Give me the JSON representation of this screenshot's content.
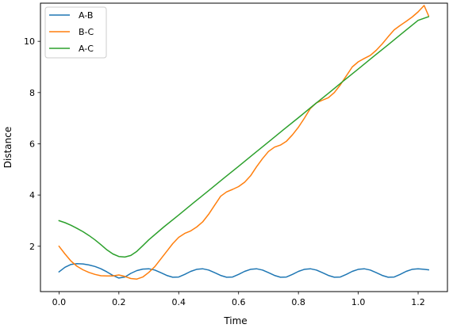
{
  "chart_data": {
    "type": "line",
    "title": "",
    "xlabel": "Time",
    "ylabel": "Distance",
    "xlim": [
      -0.062,
      1.298
    ],
    "ylim": [
      0.23,
      11.49
    ],
    "xticks": [
      0.0,
      0.2,
      0.4,
      0.6,
      0.8,
      1.0,
      1.2
    ],
    "xtick_labels": [
      "0.0",
      "0.2",
      "0.4",
      "0.6",
      "0.8",
      "1.0",
      "1.2"
    ],
    "yticks": [
      2,
      4,
      6,
      8,
      10
    ],
    "ytick_labels": [
      "2",
      "4",
      "6",
      "8",
      "10"
    ],
    "grid": false,
    "legend_position": "top-left",
    "series": [
      {
        "name": "A-B",
        "color": "#1f77b4",
        "x": [
          0.0,
          0.02,
          0.04,
          0.06,
          0.08,
          0.1,
          0.12,
          0.14,
          0.16,
          0.18,
          0.2,
          0.22,
          0.24,
          0.26,
          0.28,
          0.3,
          0.32,
          0.34,
          0.36,
          0.38,
          0.4,
          0.42,
          0.44,
          0.46,
          0.48,
          0.5,
          0.52,
          0.54,
          0.56,
          0.58,
          0.6,
          0.62,
          0.64,
          0.66,
          0.68,
          0.7,
          0.72,
          0.74,
          0.76,
          0.78,
          0.8,
          0.82,
          0.84,
          0.86,
          0.88,
          0.9,
          0.92,
          0.94,
          0.96,
          0.98,
          1.0,
          1.02,
          1.04,
          1.06,
          1.08,
          1.1,
          1.12,
          1.14,
          1.16,
          1.18,
          1.2,
          1.22,
          1.235
        ],
        "values": [
          1.0,
          1.18,
          1.29,
          1.32,
          1.31,
          1.27,
          1.21,
          1.12,
          1.0,
          0.86,
          0.76,
          0.8,
          0.94,
          1.05,
          1.11,
          1.12,
          1.07,
          0.97,
          0.86,
          0.79,
          0.8,
          0.9,
          1.02,
          1.1,
          1.12,
          1.07,
          0.97,
          0.86,
          0.79,
          0.8,
          0.9,
          1.02,
          1.1,
          1.12,
          1.07,
          0.97,
          0.86,
          0.79,
          0.8,
          0.9,
          1.02,
          1.1,
          1.12,
          1.07,
          0.97,
          0.86,
          0.79,
          0.8,
          0.9,
          1.02,
          1.1,
          1.12,
          1.07,
          0.97,
          0.86,
          0.79,
          0.8,
          0.9,
          1.02,
          1.1,
          1.12,
          1.1,
          1.08
        ]
      },
      {
        "name": "B-C",
        "color": "#ff7f0e",
        "x": [
          0.0,
          0.02,
          0.04,
          0.06,
          0.08,
          0.1,
          0.12,
          0.14,
          0.16,
          0.18,
          0.2,
          0.22,
          0.24,
          0.26,
          0.28,
          0.3,
          0.32,
          0.34,
          0.36,
          0.38,
          0.4,
          0.42,
          0.44,
          0.46,
          0.48,
          0.5,
          0.52,
          0.54,
          0.56,
          0.58,
          0.6,
          0.62,
          0.64,
          0.66,
          0.68,
          0.7,
          0.72,
          0.74,
          0.76,
          0.78,
          0.8,
          0.82,
          0.84,
          0.86,
          0.88,
          0.9,
          0.92,
          0.94,
          0.96,
          0.98,
          1.0,
          1.02,
          1.04,
          1.06,
          1.08,
          1.1,
          1.12,
          1.14,
          1.16,
          1.18,
          1.2,
          1.22,
          1.235
        ],
        "values": [
          2.0,
          1.7,
          1.42,
          1.22,
          1.08,
          0.98,
          0.9,
          0.85,
          0.84,
          0.84,
          0.88,
          0.82,
          0.74,
          0.72,
          0.8,
          0.98,
          1.2,
          1.5,
          1.8,
          2.1,
          2.35,
          2.5,
          2.6,
          2.75,
          2.95,
          3.25,
          3.6,
          3.95,
          4.12,
          4.22,
          4.33,
          4.5,
          4.75,
          5.1,
          5.42,
          5.7,
          5.87,
          5.95,
          6.1,
          6.35,
          6.65,
          7.0,
          7.38,
          7.6,
          7.7,
          7.8,
          8.0,
          8.3,
          8.65,
          9.0,
          9.2,
          9.33,
          9.45,
          9.65,
          9.9,
          10.18,
          10.45,
          10.62,
          10.78,
          10.95,
          11.15,
          11.4,
          11.0
        ],
        "note_exclude": true
      },
      {
        "name": "A-C",
        "color": "#2ca02c",
        "x": [
          0.0,
          0.02,
          0.04,
          0.06,
          0.08,
          0.1,
          0.12,
          0.14,
          0.16,
          0.18,
          0.2,
          0.22,
          0.24,
          0.26,
          0.28,
          0.3,
          0.35,
          0.4,
          0.45,
          0.5,
          0.55,
          0.6,
          0.65,
          0.7,
          0.75,
          0.8,
          0.85,
          0.9,
          0.95,
          1.0,
          1.05,
          1.1,
          1.15,
          1.2,
          1.235
        ],
        "values": [
          3.0,
          2.92,
          2.82,
          2.7,
          2.57,
          2.42,
          2.25,
          2.06,
          1.86,
          1.7,
          1.6,
          1.58,
          1.64,
          1.8,
          2.02,
          2.25,
          2.75,
          3.22,
          3.7,
          4.17,
          4.65,
          5.12,
          5.6,
          6.07,
          6.55,
          7.02,
          7.5,
          7.97,
          8.45,
          8.92,
          9.4,
          9.87,
          10.35,
          10.82,
          10.96
        ]
      }
    ]
  }
}
